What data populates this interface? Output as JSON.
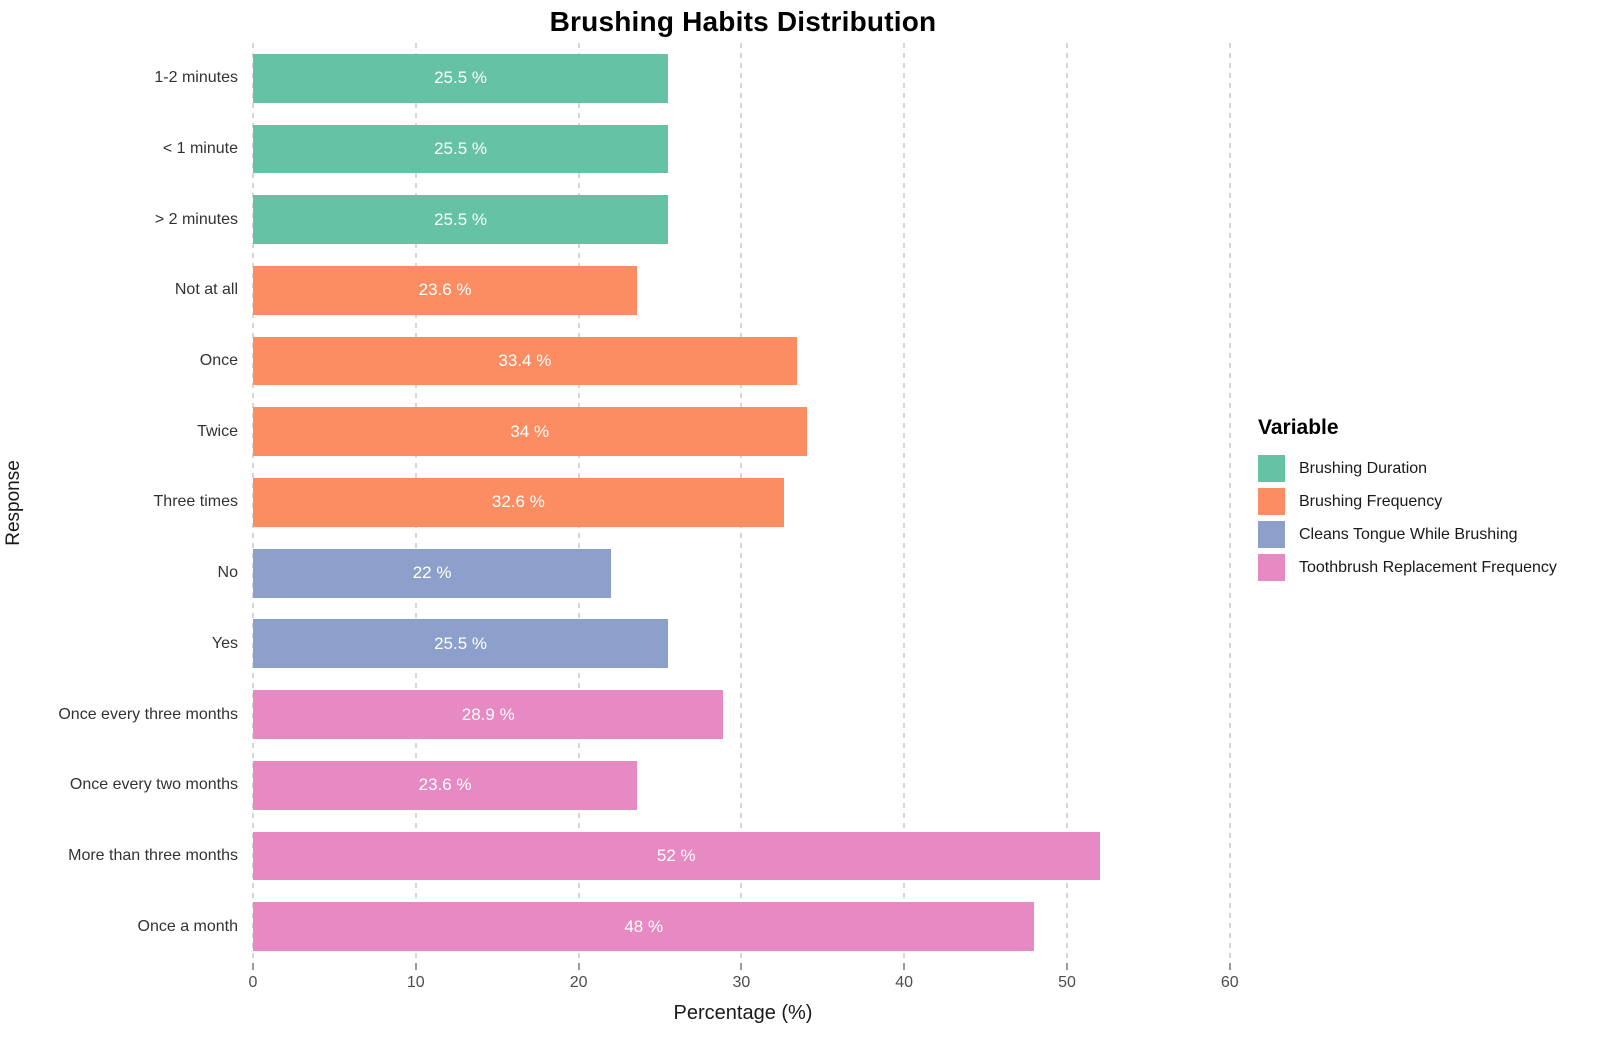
{
  "chart_data": {
    "type": "bar",
    "orientation": "horizontal",
    "title": "Brushing Habits Distribution",
    "xlabel": "Percentage (%)",
    "ylabel": "Response",
    "xlim": [
      0,
      61
    ],
    "xticks": [
      0,
      10,
      20,
      30,
      40,
      50,
      60
    ],
    "grid": "dashed-vertical",
    "legend_position": "right",
    "legend_title": "Variable",
    "series": [
      {
        "name": "Brushing Duration",
        "color": "#66C2A5"
      },
      {
        "name": "Brushing Frequency",
        "color": "#FC8D62"
      },
      {
        "name": "Cleans Tongue While Brushing",
        "color": "#8DA0CB"
      },
      {
        "name": "Toothbrush Replacement Frequency",
        "color": "#E78AC3"
      }
    ],
    "bars": [
      {
        "category": "1-2 minutes",
        "value": 25.5,
        "label": "25.5 %",
        "series": "Brushing Duration"
      },
      {
        "category": "< 1 minute",
        "value": 25.5,
        "label": "25.5 %",
        "series": "Brushing Duration"
      },
      {
        "category": "> 2 minutes",
        "value": 25.5,
        "label": "25.5 %",
        "series": "Brushing Duration"
      },
      {
        "category": "Not at all",
        "value": 23.6,
        "label": "23.6 %",
        "series": "Brushing Frequency"
      },
      {
        "category": "Once",
        "value": 33.4,
        "label": "33.4 %",
        "series": "Brushing Frequency"
      },
      {
        "category": "Twice",
        "value": 34,
        "label": "34 %",
        "series": "Brushing Frequency"
      },
      {
        "category": "Three times",
        "value": 32.6,
        "label": "32.6 %",
        "series": "Brushing Frequency"
      },
      {
        "category": "No",
        "value": 22,
        "label": "22 %",
        "series": "Cleans Tongue While Brushing"
      },
      {
        "category": "Yes",
        "value": 25.5,
        "label": "25.5 %",
        "series": "Cleans Tongue While Brushing"
      },
      {
        "category": "Once every three months",
        "value": 28.9,
        "label": "28.9 %",
        "series": "Toothbrush Replacement Frequency"
      },
      {
        "category": "Once every two months",
        "value": 23.6,
        "label": "23.6 %",
        "series": "Toothbrush Replacement Frequency"
      },
      {
        "category": "More than three months",
        "value": 52,
        "label": "52 %",
        "series": "Toothbrush Replacement Frequency"
      },
      {
        "category": "Once a month",
        "value": 48,
        "label": "48 %",
        "series": "Toothbrush Replacement Frequency"
      }
    ]
  }
}
